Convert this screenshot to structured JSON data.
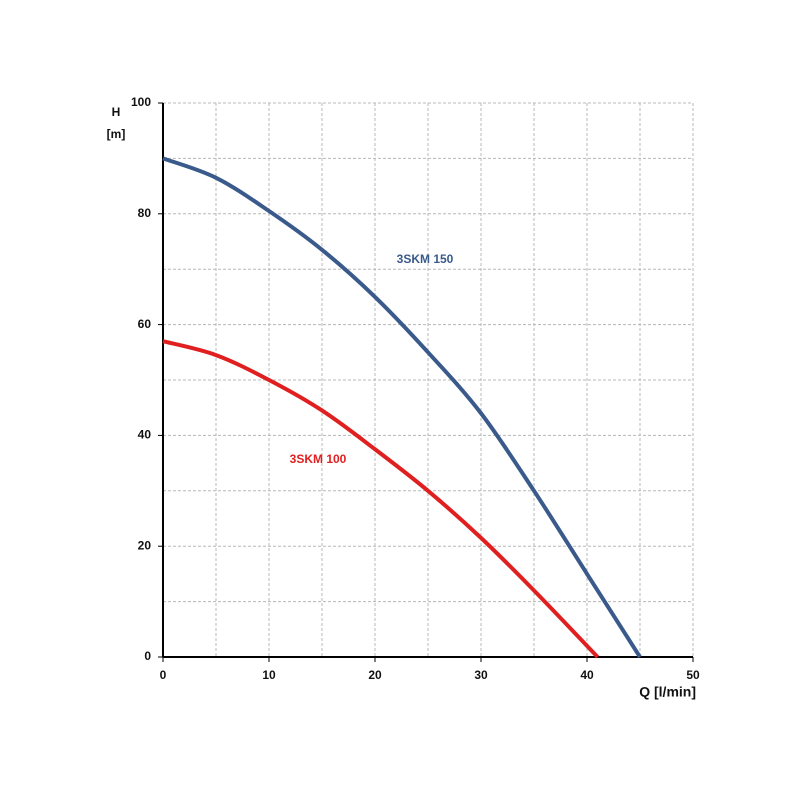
{
  "chart_data": {
    "type": "line",
    "y_label": [
      "H",
      "[m]"
    ],
    "x_label": "Q [l/min]",
    "xlim": [
      0,
      50
    ],
    "xticks": [
      0,
      10,
      20,
      30,
      40,
      50
    ],
    "ylim": [
      0,
      100
    ],
    "yticks": [
      0,
      20,
      40,
      60,
      80,
      100
    ],
    "xgrid": [
      5,
      10,
      15,
      20,
      25,
      30,
      35,
      40,
      45,
      50
    ],
    "ygrid": [
      10,
      20,
      30,
      40,
      50,
      60,
      70,
      80,
      90,
      100
    ],
    "grid": true,
    "series": [
      {
        "name": "3SKM 150",
        "color": "#3a5a8c",
        "x": [
          0,
          5,
          10,
          15,
          20,
          25,
          30,
          35,
          40,
          45
        ],
        "values": [
          90,
          86.5,
          80.5,
          73.5,
          65,
          55,
          44,
          30,
          15,
          0
        ]
      },
      {
        "name": "3SKM 100",
        "color": "#e02020",
        "x": [
          0,
          5,
          10,
          15,
          20,
          25,
          30,
          35,
          41
        ],
        "values": [
          57,
          54.5,
          50,
          44.5,
          37.5,
          30,
          21.5,
          12,
          0
        ]
      }
    ]
  }
}
